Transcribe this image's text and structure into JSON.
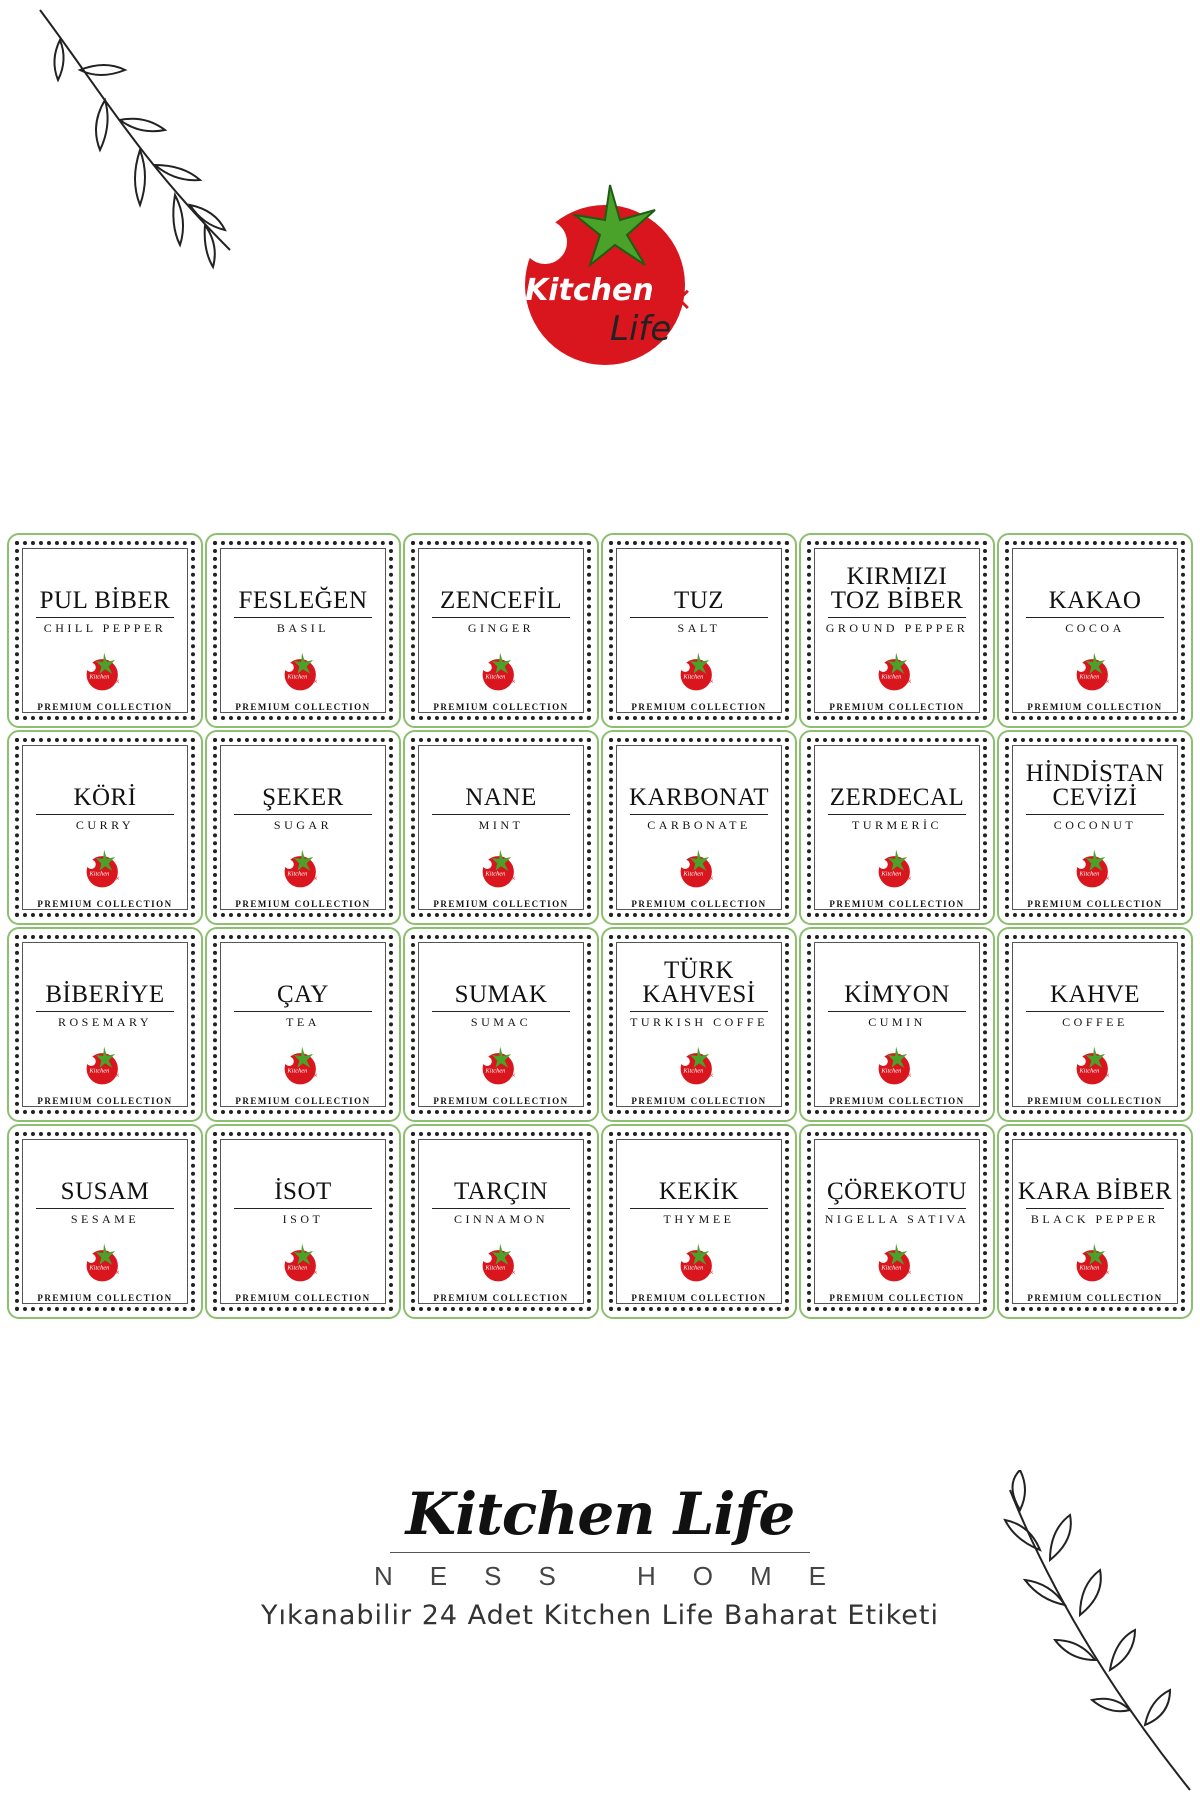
{
  "logo": {
    "word1": "Kitchen",
    "word2": "Life",
    "brand_red": "#d9151d",
    "leaf_green": "#4aa22a"
  },
  "labels": [
    {
      "tr": "PUL BİBER",
      "en": "CHILL PEPPER"
    },
    {
      "tr": "FESLEĞEN",
      "en": "BASIL"
    },
    {
      "tr": "ZENCEFİL",
      "en": "GINGER"
    },
    {
      "tr": "TUZ",
      "en": "SALT"
    },
    {
      "tr": "KIRMIZI TOZ BİBER",
      "en": "GROUND PEPPER"
    },
    {
      "tr": "KAKAO",
      "en": "COCOA"
    },
    {
      "tr": "KÖRİ",
      "en": "CURRY"
    },
    {
      "tr": "ŞEKER",
      "en": "SUGAR"
    },
    {
      "tr": "NANE",
      "en": "MINT"
    },
    {
      "tr": "KARBONAT",
      "en": "CARBONATE"
    },
    {
      "tr": "ZERDECAL",
      "en": "TURMERİC"
    },
    {
      "tr": "HİNDİSTAN CEVİZİ",
      "en": "COCONUT"
    },
    {
      "tr": "BİBERİYE",
      "en": "ROSEMARY"
    },
    {
      "tr": "ÇAY",
      "en": "TEA"
    },
    {
      "tr": "SUMAK",
      "en": "SUMAC"
    },
    {
      "tr": "TÜRK KAHVESİ",
      "en": "TURKISH COFFE"
    },
    {
      "tr": "KİMYON",
      "en": "CUMIN"
    },
    {
      "tr": "KAHVE",
      "en": "COFFEE"
    },
    {
      "tr": "SUSAM",
      "en": "SESAME"
    },
    {
      "tr": "İSOT",
      "en": "ISOT"
    },
    {
      "tr": "TARÇIN",
      "en": "CINNAMON"
    },
    {
      "tr": "KEKİK",
      "en": "THYMEE"
    },
    {
      "tr": "ÇÖREKOTU",
      "en": "NIGELLA SATIVA"
    },
    {
      "tr": "KARA BİBER",
      "en": "BLACK PEPPER"
    }
  ],
  "premium_label": "PREMIUM COLLECTION",
  "footer": {
    "script_title": "Kitchen Life",
    "subtitle": "NESS HOME",
    "tagline": "Yıkanabilir 24 Adet Kitchen Life Baharat Etiketi"
  }
}
